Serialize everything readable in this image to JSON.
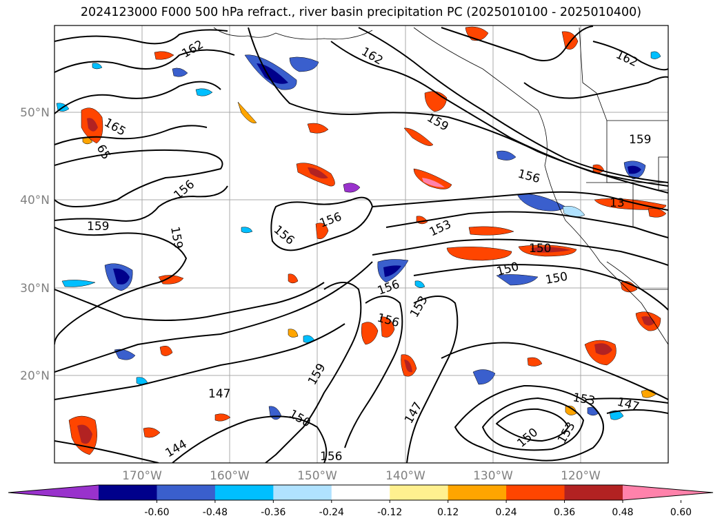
{
  "title": "2024123000 F000 500 hPa refract., river basin precipitation PC (2025010100 - 2025010400)",
  "map": {
    "lat_labels": [
      "50°N",
      "40°N",
      "30°N",
      "20°N"
    ],
    "lon_labels": [
      "170°W",
      "160°W",
      "150°W",
      "140°W",
      "130°W",
      "120°W"
    ],
    "lat_range": [
      10,
      60
    ],
    "lon_range": [
      -180,
      -110
    ],
    "gridlines": true
  },
  "contour_labels": [
    {
      "text": "165"
    },
    {
      "text": "65"
    },
    {
      "text": "162"
    },
    {
      "text": "162"
    },
    {
      "text": "162"
    },
    {
      "text": "159"
    },
    {
      "text": "159"
    },
    {
      "text": "159"
    },
    {
      "text": "159"
    },
    {
      "text": "159"
    },
    {
      "text": "156"
    },
    {
      "text": "156"
    },
    {
      "text": "156"
    },
    {
      "text": "156"
    },
    {
      "text": "156"
    },
    {
      "text": "156"
    },
    {
      "text": "156"
    },
    {
      "text": "153"
    },
    {
      "text": "153"
    },
    {
      "text": "153"
    },
    {
      "text": "153"
    },
    {
      "text": "150"
    },
    {
      "text": "150"
    },
    {
      "text": "150"
    },
    {
      "text": "150"
    },
    {
      "text": "150"
    },
    {
      "text": "147"
    },
    {
      "text": "147"
    },
    {
      "text": "147"
    },
    {
      "text": "144"
    },
    {
      "text": "13"
    }
  ],
  "colorbar": {
    "colors": [
      "#9932cc",
      "#00008b",
      "#3a5fcd",
      "#00bfff",
      "#b0e2ff",
      "#ffffff",
      "#fff08f",
      "#ffa500",
      "#ff4500",
      "#b22222",
      "#ff82ab"
    ],
    "ticks": [
      "-0.60",
      "-0.48",
      "-0.36",
      "-0.24",
      "-0.12",
      "0.12",
      "0.24",
      "0.36",
      "0.48",
      "0.60"
    ],
    "extend": "both"
  }
}
